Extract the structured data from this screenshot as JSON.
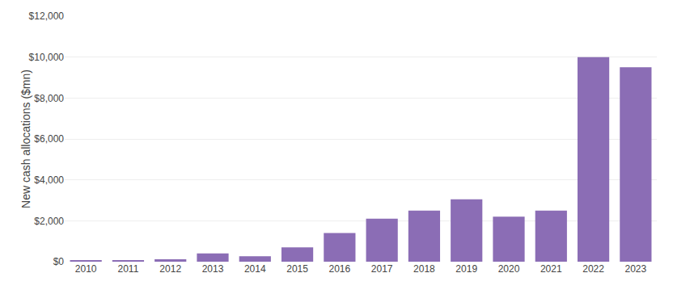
{
  "chart_data": {
    "type": "bar",
    "categories": [
      "2010",
      "2011",
      "2012",
      "2013",
      "2014",
      "2015",
      "2016",
      "2017",
      "2018",
      "2019",
      "2020",
      "2021",
      "2022",
      "2023"
    ],
    "values": [
      50,
      80,
      120,
      400,
      270,
      700,
      1400,
      2100,
      2500,
      3050,
      2200,
      2500,
      10000,
      9500
    ],
    "color": "#8B6DB5",
    "ylabel": "New cash allocations ($mn)",
    "ylim": [
      0,
      12000
    ],
    "yticks": [
      {
        "value": 0,
        "label": "$0"
      },
      {
        "value": 2000,
        "label": "$2,000"
      },
      {
        "value": 4000,
        "label": "$4,000"
      },
      {
        "value": 6000,
        "label": "$6,000"
      },
      {
        "value": 8000,
        "label": "$8,000"
      },
      {
        "value": 10000,
        "label": "$10,000"
      },
      {
        "value": 12000,
        "label": "$12,000"
      }
    ],
    "grid": true
  }
}
